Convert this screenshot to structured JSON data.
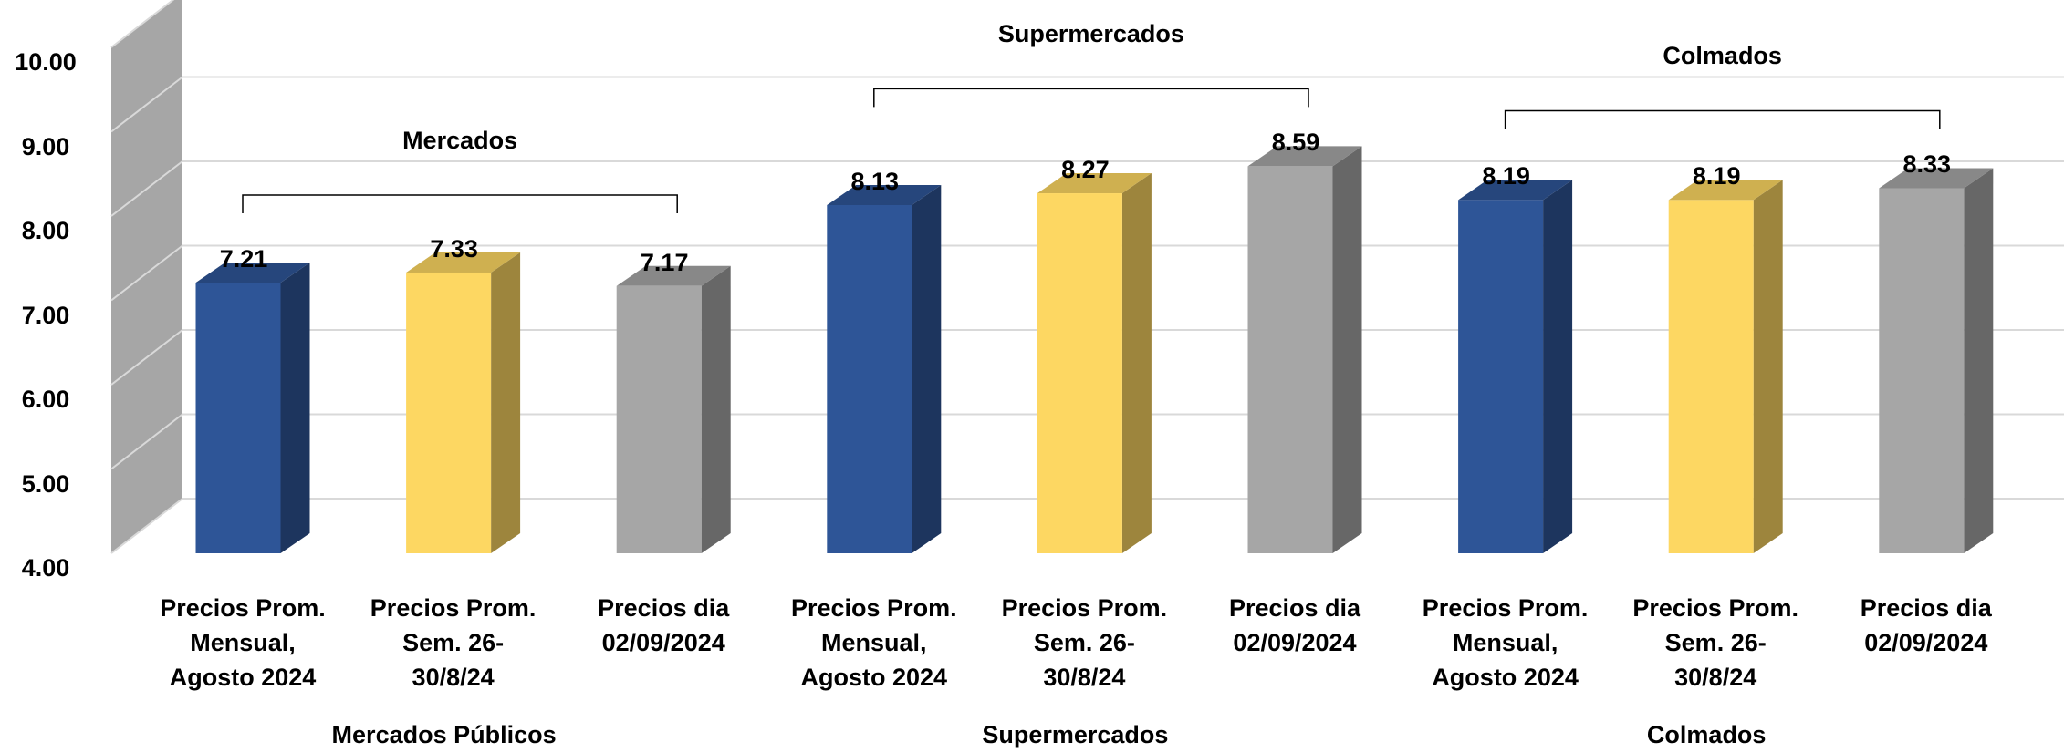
{
  "chart_data": {
    "type": "bar3d",
    "groups": [
      {
        "name": "Mercados Públicos",
        "bracket_label": "Mercados",
        "categories": [
          "Precios Prom. Mensual, Agosto 2024",
          "Precios Prom. Sem. 26-30/8/24",
          "Precios dia 02/09/2024"
        ],
        "values": [
          7.21,
          7.33,
          7.17
        ]
      },
      {
        "name": "Supermercados",
        "bracket_label": "Supermercados",
        "categories": [
          "Precios Prom. Mensual, Agosto 2024",
          "Precios Prom. Sem. 26-30/8/24",
          "Precios dia 02/09/2024"
        ],
        "values": [
          8.13,
          8.27,
          8.59
        ]
      },
      {
        "name": "Colmados",
        "bracket_label": "Colmados",
        "categories": [
          "Precios Prom. Mensual, Agosto 2024",
          "Precios Prom. Sem. 26-30/8/24",
          "Precios dia 02/09/2024"
        ],
        "values": [
          8.19,
          8.19,
          8.33
        ]
      }
    ],
    "colors": [
      "#2e5597",
      "#fdd762",
      "#a6a6a6"
    ],
    "ylim": [
      4,
      10
    ],
    "yticks": [
      {
        "value": 4,
        "label": "4.00"
      },
      {
        "value": 5,
        "label": "5.00"
      },
      {
        "value": 6,
        "label": "6.00"
      },
      {
        "value": 7,
        "label": "7.00"
      },
      {
        "value": 8,
        "label": "8.00"
      },
      {
        "value": 9,
        "label": "9.00"
      },
      {
        "value": 10,
        "label": "10.00"
      }
    ],
    "grid": true
  }
}
